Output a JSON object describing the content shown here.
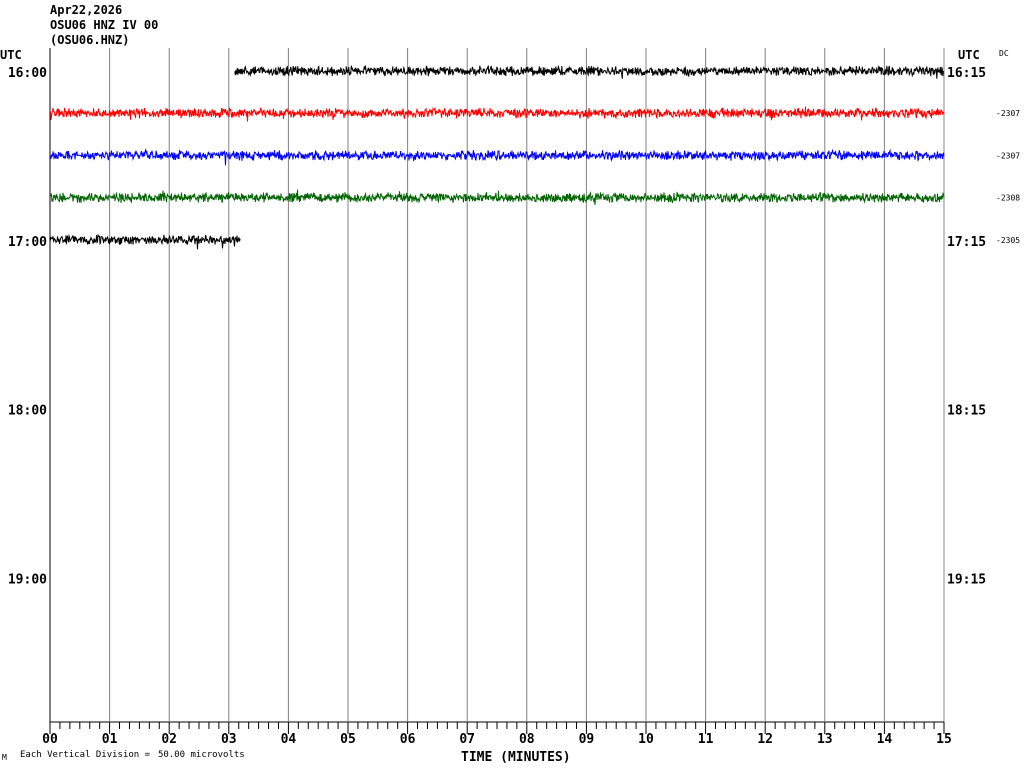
{
  "header": {
    "date": "Apr22,2026",
    "station": "OSU06 HNZ IV 00",
    "channel": "(OSU06.HNZ)",
    "left_tz": "UTC",
    "right_tz": "UTC",
    "dc_label": "DC"
  },
  "footer": {
    "mark": "M",
    "scale_text": "Each Vertical Division =",
    "scale_value": "50.00 microvolts"
  },
  "chart_data": {
    "type": "line",
    "xlabel": "TIME (MINUTES)",
    "xlim": [
      0,
      15
    ],
    "x_ticks": [
      "00",
      "01",
      "02",
      "03",
      "04",
      "05",
      "06",
      "07",
      "08",
      "09",
      "10",
      "11",
      "12",
      "13",
      "14",
      "15"
    ],
    "left_hour_labels": [
      "16:00",
      "17:00",
      "18:00",
      "19:00"
    ],
    "right_hour_labels": [
      "16:15",
      "17:15",
      "18:15",
      "19:15"
    ],
    "rows_per_hour": 4,
    "total_rows": 16,
    "grid": "vertical lines each minute",
    "traces": [
      {
        "row": 0,
        "color": "#000000",
        "start_min": 3.1,
        "end_min": 15,
        "dc": ""
      },
      {
        "row": 1,
        "color": "#ff0000",
        "start_min": 0,
        "end_min": 15,
        "dc": "-2307"
      },
      {
        "row": 2,
        "color": "#0000ff",
        "start_min": 0,
        "end_min": 15,
        "dc": "-2307"
      },
      {
        "row": 3,
        "color": "#006400",
        "start_min": 0,
        "end_min": 15,
        "dc": "-2308"
      },
      {
        "row": 4,
        "color": "#000000",
        "start_min": 0,
        "end_min": 3.2,
        "dc": "-2305"
      }
    ]
  }
}
